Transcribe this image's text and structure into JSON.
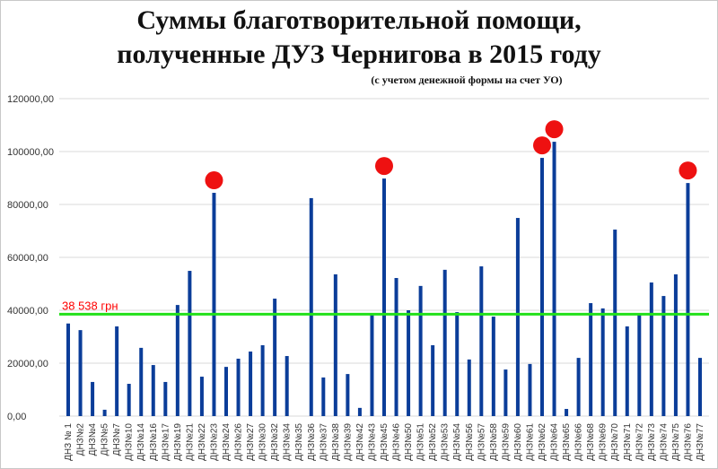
{
  "chart_data": {
    "type": "bar",
    "title_line1": "Суммы благотворительной помощи,",
    "title_line2": "полученные ДУЗ Чернигова в 2015 году",
    "subtitle": "(с учетом денежной формы на счет УО)",
    "xlabel": "",
    "ylabel": "",
    "ylim": [
      0,
      120000
    ],
    "yticks": [
      "0,00",
      "20000,00",
      "40000,00",
      "60000,00",
      "80000,00",
      "100000,00",
      "120000,00"
    ],
    "grid": true,
    "bar_color": "#0b3d99",
    "categories": [
      "ДНЗ № 1",
      "ДНЗ№2",
      "ДНЗ№4",
      "ДНЗ№5",
      "ДНЗ№7",
      "ДНЗ№10",
      "ДНЗ№14",
      "ДНЗ№16",
      "ДНЗ№17",
      "ДНЗ№19",
      "ДНЗ№21",
      "ДНЗ№22",
      "ДНЗ№23",
      "ДНЗ№24",
      "ДНЗ№26",
      "ДНЗ№27",
      "ДНЗ№30",
      "ДНЗ№32",
      "ДНЗ№34",
      "ДНЗ№35",
      "ДНЗ№36",
      "ДНЗ№37",
      "ДНЗ№38",
      "ДНЗ№39",
      "ДНЗ№42",
      "ДНЗ№43",
      "ДНЗ№45",
      "ДНЗ№46",
      "ДНЗ№50",
      "ДНЗ№51",
      "ДНЗ№52",
      "ДНЗ№53",
      "ДНЗ№54",
      "ДНЗ№56",
      "ДНЗ№57",
      "ДНЗ№58",
      "ДНЗ№59",
      "ДНЗ№60",
      "ДНЗ№61",
      "ДНЗ№62",
      "ДНЗ№64",
      "ДНЗ№65",
      "ДНЗ№66",
      "ДНЗ№68",
      "ДНЗ№69",
      "ДНЗ№70",
      "ДНЗ№71",
      "ДНЗ№72",
      "ДНЗ№73",
      "ДНЗ№74",
      "ДНЗ№75",
      "ДНЗ№76",
      "ДНЗ№77"
    ],
    "values": [
      35000,
      32500,
      12900,
      2400,
      33900,
      12200,
      25800,
      19300,
      12900,
      42000,
      54900,
      14900,
      84400,
      18600,
      21700,
      24400,
      26800,
      44400,
      22700,
      0,
      82400,
      14600,
      53600,
      15900,
      3100,
      38600,
      89800,
      52200,
      40000,
      49200,
      26800,
      55300,
      39300,
      21400,
      56600,
      37600,
      17600,
      74900,
      19700,
      97600,
      103700,
      2700,
      22000,
      42700,
      40700,
      70500,
      33900,
      38300,
      50500,
      45400,
      53600,
      88100,
      22000
    ],
    "reference_line": {
      "value": 38538,
      "label": "38 538 грн",
      "color": "#22e01a",
      "label_color": "#ff0000"
    },
    "highlighted": [
      "ДНЗ№23",
      "ДНЗ№45",
      "ДНЗ№62",
      "ДНЗ№64",
      "ДНЗ№76"
    ],
    "highlight_color": "#ee1111"
  }
}
